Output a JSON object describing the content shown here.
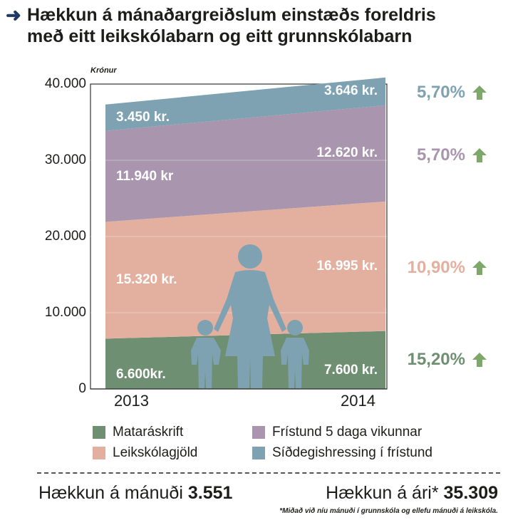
{
  "title": {
    "line1": "Hækkun á mánaðargreiðslum einstæðs foreldris",
    "line2": "með eitt leikskólabarn og eitt grunnskólabarn"
  },
  "colors": {
    "mataraskrift": "#6f8f72",
    "leikskolagjold": "#e3b09f",
    "fristund": "#a995ad",
    "sidegishressing": "#7ea2b1",
    "arrow": "#7ea86a"
  },
  "chart_data": {
    "type": "area",
    "x": [
      "2013",
      "2014"
    ],
    "ylabel": "Krónur",
    "ylim": [
      0,
      40000
    ],
    "yticks": [
      "0",
      "10.000",
      "20.000",
      "30.000",
      "40.000"
    ],
    "grid": true,
    "stacked": true,
    "series": [
      {
        "key": "mataraskrift",
        "name": "Mataráskrift",
        "values": [
          6600,
          7600
        ],
        "labels": [
          "6.600kr.",
          "7.600 kr."
        ],
        "change": "15,20%"
      },
      {
        "key": "leikskolagjold",
        "name": "Leikskólagjöld",
        "values": [
          15320,
          16995
        ],
        "labels": [
          "15.320 kr.",
          "16.995 kr."
        ],
        "change": "10,90%"
      },
      {
        "key": "fristund",
        "name": "Frístund 5 daga vikunnar",
        "values": [
          11940,
          12620
        ],
        "labels": [
          "11.940 kr",
          "12.620 kr."
        ],
        "change": "5,70%"
      },
      {
        "key": "sidegishressing",
        "name": "Síðdegishressing í frístund",
        "values": [
          3450,
          3646
        ],
        "labels": [
          "3.450 kr.",
          "3.646 kr."
        ],
        "change": "5,70%"
      }
    ]
  },
  "summary": {
    "monthly_label": "Hækkun á mánuði",
    "monthly_value": "3.551",
    "yearly_label": "Hækkun á ári*",
    "yearly_value": "35.309",
    "footnote": "*Miðað við níu mánuði í grunnskóla og ellefu mánuði á leikskóla."
  }
}
